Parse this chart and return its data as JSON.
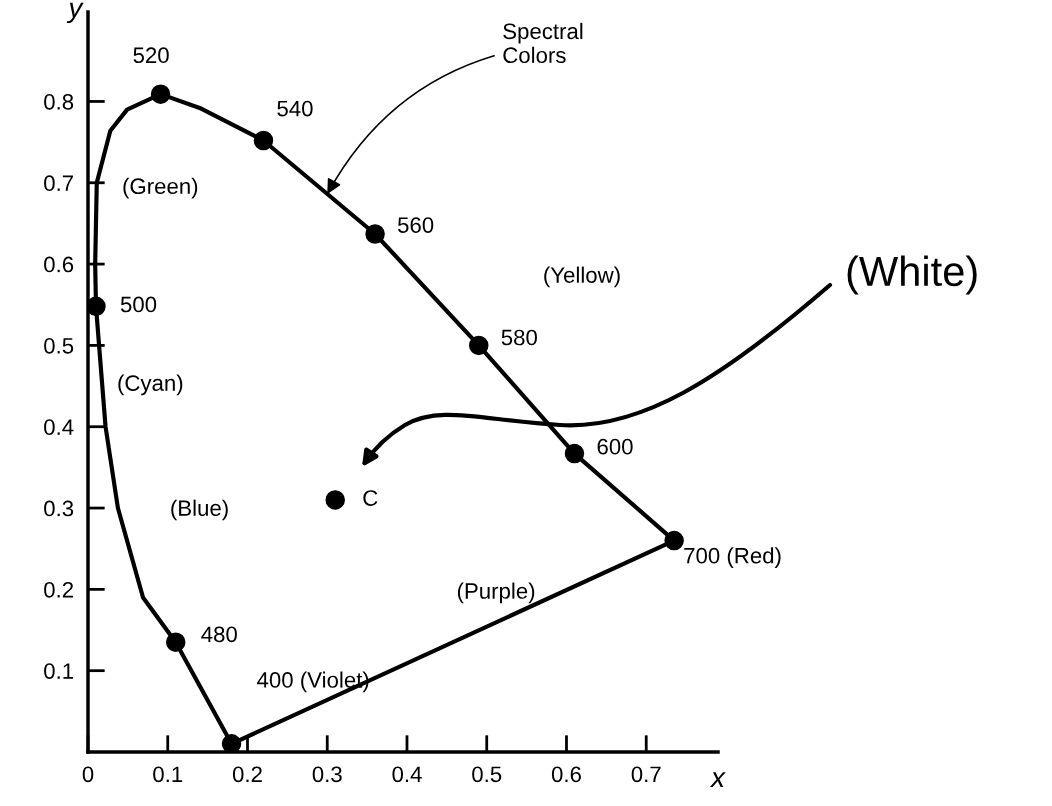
{
  "chart_data": {
    "type": "line",
    "xlabel": "x",
    "ylabel": "y",
    "xlim": [
      0,
      0.79
    ],
    "ylim": [
      0,
      0.91
    ],
    "xticks": [
      {
        "value": 0,
        "label": "0"
      },
      0.1,
      0.2,
      0.3,
      0.4,
      0.5,
      0.6,
      0.7
    ],
    "yticks": [
      0.1,
      0.2,
      0.3,
      0.4,
      0.5,
      0.6,
      0.7,
      0.8
    ],
    "series": [
      {
        "color": "#000000",
        "marker": "none",
        "x": [
          0.18,
          0.11,
          0.069,
          0.0375,
          0.022,
          0.01,
          0.009,
          0.011,
          0.028,
          0.049,
          0.091,
          0.14,
          0.22,
          0.36,
          0.49,
          0.61,
          0.735
        ],
        "values": [
          0.01,
          0.135,
          0.19,
          0.3,
          0.4,
          0.548,
          0.6,
          0.7,
          0.764,
          0.79,
          0.809,
          0.792,
          0.752,
          0.637,
          0.5,
          0.367,
          0.26
        ]
      },
      {
        "color": "#000000",
        "marker": "none",
        "x": [
          0.18,
          0.735
        ],
        "values": [
          0.01,
          0.26
        ]
      },
      {
        "type": "scatter",
        "color": "#000000",
        "marker": "circle",
        "x": [
          0.091,
          0.22,
          0.36,
          0.49,
          0.61,
          0.735,
          0.11,
          0.18,
          0.01,
          0.31
        ],
        "values": [
          0.809,
          0.752,
          0.637,
          0.5,
          0.367,
          0.26,
          0.135,
          0.01,
          0.548,
          0.31
        ]
      }
    ],
    "annotations": [
      {
        "text": "520",
        "x": 0.091,
        "y": 0.809
      },
      {
        "text": "540",
        "x": 0.22,
        "y": 0.752
      },
      {
        "text": "560",
        "x": 0.36,
        "y": 0.637
      },
      {
        "text": "580",
        "x": 0.49,
        "y": 0.5
      },
      {
        "text": "600",
        "x": 0.61,
        "y": 0.367
      },
      {
        "text": "700 (Red)",
        "x": 0.735,
        "y": 0.26
      },
      {
        "text": "480",
        "x": 0.11,
        "y": 0.135
      },
      {
        "text": "400 (Violet)",
        "x": 0.18,
        "y": 0.01
      },
      {
        "text": "500",
        "x": 0.01,
        "y": 0.548
      },
      {
        "text": "C",
        "x": 0.31,
        "y": 0.31
      },
      "(Green)",
      "(Cyan)",
      "(Blue)",
      "(Yellow)",
      "(Purple)",
      {
        "text": "Spectral\nColors",
        "x": 0.3,
        "y": 0.686
      },
      "(White)"
    ]
  }
}
